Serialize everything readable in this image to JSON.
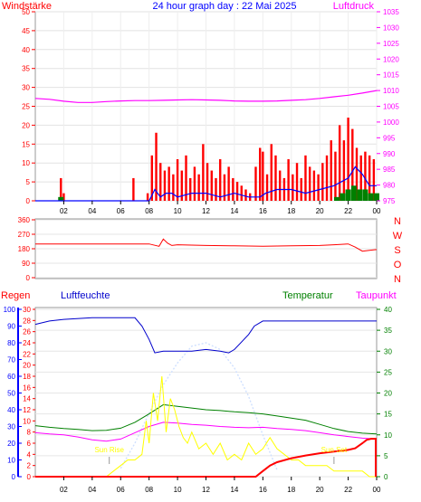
{
  "colors": {
    "wind": "#ff0000",
    "pressure": "#ff00ff",
    "title": "#0000ff",
    "gust": "#0000ff",
    "green": "#008000",
    "direction": "#ff0000",
    "temperature": "#008000",
    "humidity": "#0000cc",
    "dewpoint": "#ff00ff",
    "rain": "#ff0000",
    "sun": "#ffff00",
    "solar": "#cfe0ff",
    "axisdark": "#000000",
    "plotbg": "#ffffff"
  },
  "header": {
    "wind_label": "Windstärke",
    "title": "24 hour graph day : 22 Mai 2025",
    "pressure_label": "Luftdruck"
  },
  "bottom_header": {
    "rain_label": "Regen",
    "humidity_label": "Luftfeuchte",
    "temperature_label": "Temperatur",
    "dewpoint_label": "Taupunkt"
  },
  "time_ticks": [
    "02",
    "04",
    "06",
    "08",
    "10",
    "12",
    "14",
    "16",
    "18",
    "20",
    "22",
    "00"
  ],
  "chart_data": [
    {
      "type": "bar",
      "name": "wind",
      "x_hours_range": [
        0,
        24
      ],
      "ylim_left": [
        0,
        50
      ],
      "ylim_right": [
        975,
        1035
      ],
      "y_left_ticks": [
        "50",
        "45",
        "40",
        "35",
        "30",
        "25",
        "20",
        "15",
        "10",
        "5",
        "0"
      ],
      "y_right_ticks": [
        "1035",
        "1030",
        "1025",
        "1020",
        "1015",
        "1010",
        "1005",
        "1000",
        "995",
        "990",
        "985",
        "980",
        "975"
      ],
      "series": [
        {
          "name": "Windstärke",
          "kind": "bar",
          "x": [
            1.8,
            2.0,
            6.9,
            7.9,
            8.2,
            8.5,
            8.8,
            9.1,
            9.4,
            9.7,
            10.0,
            10.3,
            10.6,
            10.9,
            11.2,
            11.5,
            11.8,
            12.1,
            12.4,
            12.7,
            13.0,
            13.3,
            13.6,
            13.9,
            14.2,
            14.5,
            14.8,
            15.1,
            15.5,
            15.8,
            16.0,
            16.3,
            16.6,
            16.9,
            17.2,
            17.5,
            17.8,
            18.1,
            18.4,
            18.7,
            19.0,
            19.3,
            19.6,
            19.9,
            20.2,
            20.5,
            20.8,
            21.1,
            21.4,
            21.7,
            22.0,
            22.3,
            22.6,
            22.9,
            23.2,
            23.5,
            23.8
          ],
          "values": [
            6,
            2,
            6,
            2,
            12,
            18,
            10,
            8,
            9,
            7,
            11,
            8,
            12,
            6,
            9,
            7,
            15,
            10,
            8,
            6,
            11,
            7,
            9,
            6,
            5,
            4,
            3,
            2,
            9,
            14,
            13,
            7,
            15,
            12,
            8,
            6,
            11,
            7,
            10,
            6,
            12,
            9,
            8,
            7,
            10,
            12,
            16,
            13,
            20,
            16,
            22,
            19,
            14,
            12,
            13,
            12,
            11
          ]
        },
        {
          "name": "gust-blue",
          "kind": "line",
          "x": [
            0.0,
            8.0,
            8.4,
            8.8,
            9.2,
            9.6,
            10.0,
            11.0,
            12.0,
            13.0,
            14.0,
            15.0,
            15.8,
            16.2,
            17.0,
            18.0,
            19.0,
            20.0,
            21.0,
            22.0,
            22.5,
            23.0,
            23.5,
            24.0
          ],
          "values": [
            0,
            0,
            3,
            1,
            2,
            2,
            1,
            2,
            2,
            1,
            2,
            1,
            1,
            2,
            3,
            3,
            2,
            3,
            4,
            6,
            9,
            7,
            4,
            4
          ]
        },
        {
          "name": "green",
          "kind": "bar",
          "x": [
            1.8,
            21.2,
            21.6,
            22.0,
            22.4,
            22.8,
            23.2,
            23.6,
            24.0
          ],
          "values": [
            1,
            1,
            2,
            3,
            4,
            3,
            3,
            2,
            2
          ]
        },
        {
          "name": "Luftdruck",
          "kind": "line",
          "axis": "right",
          "x": [
            0,
            1,
            2,
            3,
            4,
            5,
            6,
            7,
            8,
            9,
            10,
            11,
            12,
            13,
            14,
            15,
            16,
            17,
            18,
            19,
            20,
            21,
            22,
            23,
            24
          ],
          "values": [
            1007.5,
            1007.2,
            1006.6,
            1006.2,
            1006.2,
            1006.5,
            1006.7,
            1006.8,
            1006.8,
            1006.9,
            1007.0,
            1007.1,
            1007.0,
            1006.9,
            1006.7,
            1006.6,
            1006.6,
            1006.7,
            1006.9,
            1007.1,
            1007.5,
            1008.0,
            1008.5,
            1009.2,
            1010.0
          ]
        }
      ]
    },
    {
      "type": "line",
      "name": "direction",
      "x_hours_range": [
        0,
        24
      ],
      "ylim": [
        0,
        360
      ],
      "y_ticks": [
        "360",
        "270",
        "180",
        "90",
        "0"
      ],
      "compass": [
        "N",
        "W",
        "S",
        "O",
        "N"
      ],
      "series": [
        {
          "name": "direction",
          "x": [
            0,
            2,
            4,
            6,
            8,
            8.7,
            9.0,
            9.3,
            9.6,
            10,
            12,
            14,
            16,
            18,
            20,
            21,
            22,
            22.5,
            23,
            23.5,
            24
          ],
          "values": [
            210,
            210,
            210,
            210,
            210,
            195,
            240,
            215,
            200,
            205,
            200,
            198,
            196,
            198,
            200,
            205,
            210,
            190,
            165,
            170,
            175
          ]
        }
      ]
    },
    {
      "type": "line",
      "name": "bottom",
      "x_hours_range": [
        0,
        24
      ],
      "axes": {
        "left_outer": {
          "ylim": [
            0,
            100
          ],
          "ticks": [
            "100",
            "90",
            "80",
            "70",
            "60",
            "50",
            "40",
            "30",
            "20",
            "10",
            "0"
          ]
        },
        "left_inner": {
          "ylim": [
            0,
            30
          ],
          "ticks": [
            "30",
            "28",
            "26",
            "24",
            "22",
            "20",
            "18",
            "16",
            "14",
            "12",
            "10",
            "8",
            "6",
            "4",
            "2",
            "0"
          ]
        },
        "right": {
          "ylim": [
            0,
            40
          ],
          "ticks": [
            "40",
            "35",
            "30",
            "25",
            "20",
            "15",
            "10",
            "5",
            "0"
          ]
        }
      },
      "sun_labels": [
        {
          "text": "Sun Rise",
          "x": 5.2
        },
        {
          "text": "Sun Set",
          "x": 21.0
        }
      ],
      "series": [
        {
          "name": "Luftfeuchte",
          "axis": "left_outer",
          "x": [
            0,
            1,
            2,
            4,
            6,
            7,
            7.5,
            8,
            8.4,
            9,
            10,
            11,
            12,
            13,
            13.6,
            14,
            15,
            15.4,
            16,
            17,
            18,
            20,
            22,
            24
          ],
          "values": [
            91,
            93,
            94,
            95,
            95,
            95,
            90,
            82,
            74,
            75,
            75,
            75,
            76,
            75,
            74,
            76,
            85,
            90,
            93,
            93,
            93,
            93,
            93,
            93
          ]
        },
        {
          "name": "solar",
          "axis": "left_outer",
          "x": [
            6,
            7,
            8,
            9,
            10,
            11,
            12,
            13,
            14,
            15,
            16,
            17
          ],
          "values": [
            5,
            20,
            38,
            55,
            68,
            78,
            80,
            76,
            65,
            48,
            25,
            4
          ]
        },
        {
          "name": "Temperatur",
          "axis": "right",
          "x": [
            0,
            1,
            2,
            3,
            4,
            5,
            6,
            7,
            8,
            9,
            10,
            11,
            12,
            13,
            14,
            15,
            16,
            17,
            18,
            19,
            20,
            21,
            22,
            23,
            24
          ],
          "values": [
            12.2,
            11.8,
            11.5,
            11.3,
            11.0,
            11.1,
            11.6,
            13.0,
            15.0,
            17.2,
            16.8,
            16.4,
            16.0,
            15.8,
            15.5,
            15.3,
            15.0,
            14.5,
            14.0,
            13.5,
            12.5,
            11.5,
            10.8,
            10.4,
            10.2
          ]
        },
        {
          "name": "Taupunkt",
          "axis": "right",
          "x": [
            0,
            1,
            2,
            3,
            4,
            5,
            6,
            7,
            8,
            9,
            10,
            11,
            12,
            13,
            14,
            15,
            16,
            17,
            18,
            19,
            20,
            21,
            22,
            23,
            24
          ],
          "values": [
            10.5,
            10.2,
            10.0,
            9.5,
            8.8,
            8.5,
            9.0,
            10.5,
            12.0,
            13.0,
            12.8,
            12.5,
            12.3,
            12.0,
            11.8,
            11.7,
            11.8,
            11.5,
            11.3,
            11.0,
            10.5,
            10.0,
            9.6,
            9.2,
            9.0
          ]
        },
        {
          "name": "Sonnenschein",
          "axis": "left_inner",
          "x": [
            5.0,
            5.5,
            6,
            6.5,
            7,
            7.5,
            7.8,
            8.0,
            8.3,
            8.6,
            8.9,
            9.2,
            9.5,
            9.8,
            10.1,
            10.4,
            10.7,
            11,
            11.5,
            12,
            12.5,
            13,
            13.5,
            14,
            14.5,
            15,
            15.5,
            16,
            16.5,
            17,
            17.5,
            18,
            18.5,
            19,
            19.5,
            20,
            20.5,
            21,
            21.5,
            22,
            22.5,
            23,
            23.5,
            24
          ],
          "values": [
            0,
            1,
            2,
            3,
            3,
            4,
            10,
            6,
            15,
            10,
            18,
            8,
            14,
            12,
            9,
            7,
            6,
            8,
            5,
            6,
            4,
            6,
            3,
            4,
            3,
            6,
            4,
            5,
            7,
            5,
            4,
            3,
            3,
            2,
            2,
            2,
            2,
            1,
            1,
            1,
            1,
            1,
            0,
            0
          ]
        },
        {
          "name": "Regen",
          "axis": "left_inner",
          "x": [
            0,
            15.5,
            16,
            16.5,
            17,
            18,
            19,
            20,
            21,
            22,
            22.5,
            23,
            23.3,
            23.6,
            24
          ],
          "values": [
            0,
            0,
            1,
            2,
            2.6,
            3.3,
            3.8,
            4.2,
            4.5,
            4.8,
            5.1,
            6.0,
            6.6,
            6.8,
            6.8
          ]
        }
      ]
    }
  ]
}
